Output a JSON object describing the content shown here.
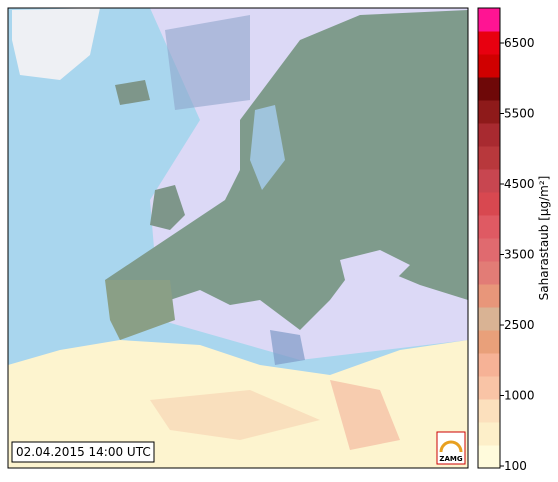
{
  "timestamp": "02.04.2015 14:00 UTC",
  "logo": "ZAMG",
  "colorbar": {
    "label": "Saharastaub [µg/m²]",
    "ticks": [
      100,
      1000,
      2500,
      3500,
      4500,
      5500,
      6500
    ],
    "colors": [
      "#fffbdc",
      "#fdefc9",
      "#fce0bd",
      "#f9c4a6",
      "#f6b296",
      "#e9a07a",
      "#d9b394",
      "#e8967a",
      "#e27c76",
      "#e06a6f",
      "#df5a63",
      "#d84850",
      "#c84650",
      "#b8383c",
      "#a82a30",
      "#8e1a1a",
      "#6e0808",
      "#d00000",
      "#e80010",
      "#ff1493"
    ]
  }
}
